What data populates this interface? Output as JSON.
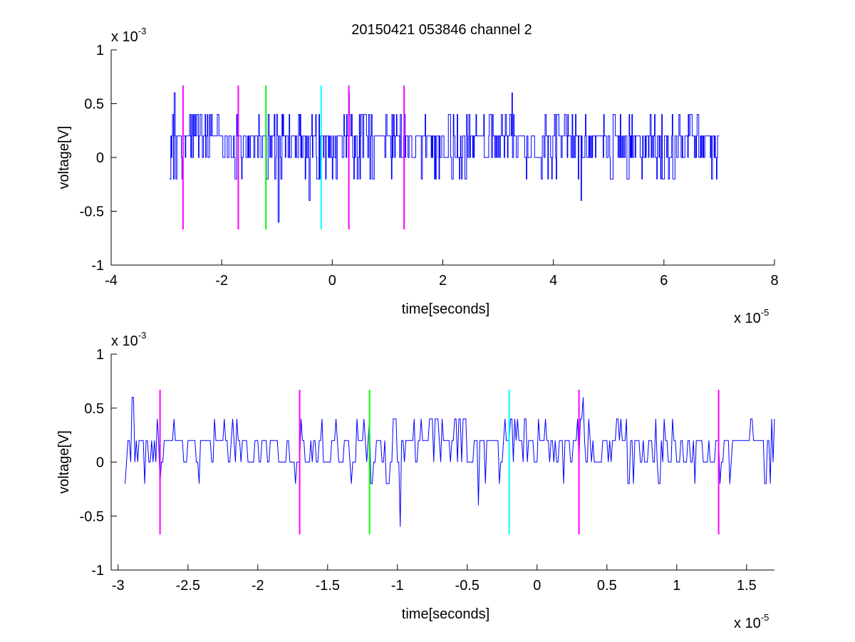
{
  "figure": {
    "title": "20150421 053846 channel 2"
  },
  "chart_data": [
    {
      "type": "line",
      "title": "20150421 053846 channel 2",
      "xlabel": "time[seconds]",
      "ylabel": "voltage[V]",
      "x_multiplier_label": {
        "base": "x 10",
        "exp": "-5"
      },
      "y_multiplier_label": {
        "base": "x 10",
        "exp": "-3"
      },
      "xlim": [
        -4,
        8
      ],
      "ylim": [
        -1,
        1
      ],
      "xticks": [
        -4,
        -2,
        0,
        2,
        4,
        6,
        8
      ],
      "xtick_labels": [
        "-4",
        "-2",
        "0",
        "2",
        "4",
        "6",
        "8"
      ],
      "yticks": [
        -1,
        -0.5,
        0,
        0.5,
        1
      ],
      "ytick_labels": [
        "-1",
        "-0.5",
        "0",
        "0.5",
        "1"
      ],
      "grid": false,
      "signal": {
        "name": "",
        "color": "#0000ff",
        "x_start": -2.95,
        "x_end": 7.0,
        "baseline_levels": [
          0,
          0.2
        ],
        "typical_range": [
          -0.2,
          0.4
        ],
        "extremes": [
          {
            "x": -2.86,
            "y": 0.6
          },
          {
            "x": -1.19,
            "y": -0.2
          },
          {
            "x": -0.98,
            "y": -0.6
          },
          {
            "x": -0.42,
            "y": -0.4
          },
          {
            "x": 0.3,
            "y": 0.6
          },
          {
            "x": 3.25,
            "y": 0.6
          },
          {
            "x": 4.5,
            "y": -0.4
          },
          {
            "x": 6.95,
            "y": -0.2
          }
        ]
      },
      "markers": [
        {
          "x": -2.7,
          "color": "#ff00ff",
          "y_range": [
            -0.67,
            0.67
          ]
        },
        {
          "x": -1.7,
          "color": "#ff00ff",
          "y_range": [
            -0.67,
            0.67
          ]
        },
        {
          "x": -1.2,
          "color": "#00ff00",
          "y_range": [
            -0.67,
            0.67
          ]
        },
        {
          "x": -0.2,
          "color": "#00ffff",
          "y_range": [
            -0.67,
            0.67
          ]
        },
        {
          "x": 0.3,
          "color": "#ff00ff",
          "y_range": [
            -0.67,
            0.67
          ]
        },
        {
          "x": 1.3,
          "color": "#ff00ff",
          "y_range": [
            -0.67,
            0.67
          ]
        }
      ]
    },
    {
      "type": "line",
      "title": "",
      "xlabel": "time[seconds]",
      "ylabel": "voltage[V]",
      "x_multiplier_label": {
        "base": "x 10",
        "exp": "-5"
      },
      "y_multiplier_label": {
        "base": "x 10",
        "exp": "-3"
      },
      "xlim": [
        -3.05,
        1.7
      ],
      "ylim": [
        -1,
        1
      ],
      "xticks": [
        -3,
        -2.5,
        -2,
        -1.5,
        -1,
        -0.5,
        0,
        0.5,
        1,
        1.5
      ],
      "xtick_labels": [
        "-3",
        "-2.5",
        "-2",
        "-1.5",
        "-1",
        "-0.5",
        "0",
        "0.5",
        "1",
        "1.5"
      ],
      "yticks": [
        -1,
        -0.5,
        0,
        0.5,
        1
      ],
      "ytick_labels": [
        "-1",
        "-0.5",
        "0",
        "0.5",
        "1"
      ],
      "grid": false,
      "signal": {
        "name": "",
        "color": "#0000ff",
        "x_start": -2.95,
        "x_end": 1.7,
        "baseline_levels": [
          0,
          0.2
        ],
        "typical_range": [
          -0.2,
          0.4
        ],
        "extremes": [
          {
            "x": -2.9,
            "y": 0.6
          },
          {
            "x": -1.19,
            "y": -0.2
          },
          {
            "x": -0.98,
            "y": -0.6
          },
          {
            "x": -0.42,
            "y": -0.4
          },
          {
            "x": 0.33,
            "y": 0.6
          }
        ]
      },
      "markers": [
        {
          "x": -2.7,
          "color": "#ff00ff",
          "y_range": [
            -0.67,
            0.67
          ]
        },
        {
          "x": -1.7,
          "color": "#ff00ff",
          "y_range": [
            -0.67,
            0.67
          ]
        },
        {
          "x": -1.2,
          "color": "#00ff00",
          "y_range": [
            -0.67,
            0.67
          ]
        },
        {
          "x": -0.2,
          "color": "#00ffff",
          "y_range": [
            -0.67,
            0.67
          ]
        },
        {
          "x": 0.3,
          "color": "#ff00ff",
          "y_range": [
            -0.67,
            0.67
          ]
        },
        {
          "x": 1.3,
          "color": "#ff00ff",
          "y_range": [
            -0.67,
            0.67
          ]
        }
      ]
    }
  ]
}
